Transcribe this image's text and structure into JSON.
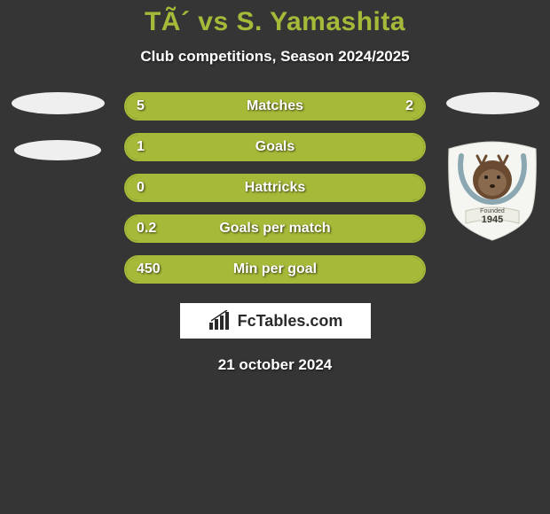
{
  "header": {
    "title": "TÃ´ vs S. Yamashita",
    "title_color": "#a7b938",
    "subtitle": "Club competitions, Season 2024/2025"
  },
  "colors": {
    "background": "#353535",
    "bar_fill": "#a7b938",
    "bar_border": "#a7b938",
    "text": "#ffffff"
  },
  "bars": [
    {
      "label": "Matches",
      "left_value": "5",
      "right_value": "2",
      "left_width_pct": 70,
      "right_width_pct": 30,
      "show_right": true
    },
    {
      "label": "Goals",
      "left_value": "1",
      "right_value": "",
      "left_width_pct": 100,
      "right_width_pct": 0,
      "show_right": false
    },
    {
      "label": "Hattricks",
      "left_value": "0",
      "right_value": "",
      "left_width_pct": 100,
      "right_width_pct": 0,
      "show_right": false
    },
    {
      "label": "Goals per match",
      "left_value": "0.2",
      "right_value": "",
      "left_width_pct": 100,
      "right_width_pct": 0,
      "show_right": false
    },
    {
      "label": "Min per goal",
      "left_value": "450",
      "right_value": "",
      "left_width_pct": 100,
      "right_width_pct": 0,
      "show_right": false
    }
  ],
  "watermark": {
    "text": "FcTables.com"
  },
  "footer": {
    "date": "21 october 2024"
  },
  "crest": {
    "bg": "#f5f5f2",
    "ring": "#8ba8b2",
    "deer": "#6b4a32",
    "banner_text": "1945",
    "banner_label": "Founded"
  }
}
